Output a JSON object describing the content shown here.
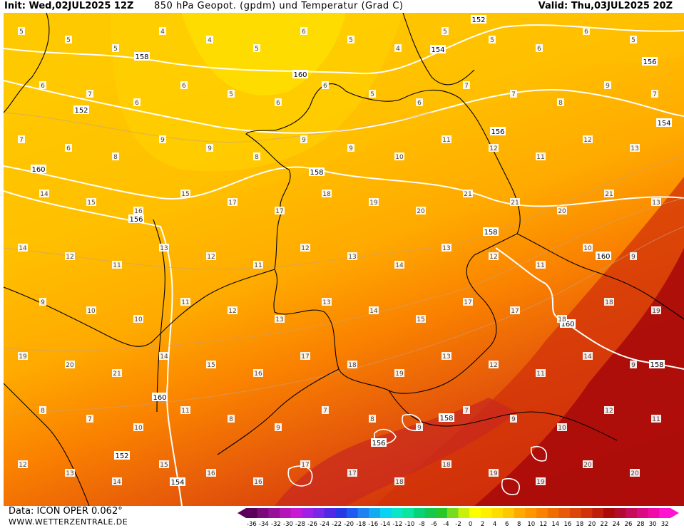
{
  "header": {
    "init": "Init: Wed,02JUL2025 12Z",
    "title": "850 hPa Geopot. (gpdm) und Temperatur (Grad C)",
    "valid": "Valid: Thu,03JUL2025 20Z"
  },
  "footer": {
    "data_source": "Data: ICON OPER 0.062°",
    "website": "WWW.WETTERZENTRALE.DE"
  },
  "colorbar": {
    "colors": [
      "#5a005a",
      "#7a0a7a",
      "#96109a",
      "#b414b8",
      "#c818d2",
      "#a020e6",
      "#7828e6",
      "#5028e6",
      "#2838e6",
      "#1e5af0",
      "#1e82f0",
      "#14aaf0",
      "#0ad2f0",
      "#0ae6c8",
      "#0ae6a0",
      "#0ad278",
      "#14c850",
      "#28c828",
      "#78dc1e",
      "#c8f00a",
      "#ffff00",
      "#fff000",
      "#ffdc00",
      "#ffc800",
      "#ffaa00",
      "#ff9600",
      "#fa8200",
      "#f06e00",
      "#e65a0a",
      "#dc460a",
      "#d2320a",
      "#be1e0a",
      "#aa0a0a",
      "#b40a32",
      "#c80a5a",
      "#dc0a82",
      "#f00aaa",
      "#ff14d2"
    ],
    "tick_labels": [
      "-36",
      "-34",
      "-32",
      "-30",
      "-28",
      "-26",
      "-24",
      "-22",
      "-20",
      "-18",
      "-16",
      "-14",
      "-12",
      "-10",
      "-8",
      "-6",
      "-4",
      "-2",
      "0",
      "2",
      "4",
      "6",
      "8",
      "10",
      "12",
      "14",
      "16",
      "18",
      "20",
      "22",
      "24",
      "26",
      "28",
      "30",
      "32"
    ]
  },
  "map": {
    "geopotential_labels": [
      "152",
      "154",
      "156",
      "158",
      "160",
      "152",
      "154",
      "156",
      "158",
      "160",
      "156",
      "158",
      "160",
      "158",
      "160",
      "152",
      "154",
      "156",
      "158",
      "160"
    ],
    "temperature_labels": [
      "5",
      "5",
      "5",
      "4",
      "4",
      "5",
      "6",
      "5",
      "4",
      "5",
      "5",
      "6",
      "6",
      "5",
      "6",
      "7",
      "6",
      "6",
      "5",
      "6",
      "6",
      "5",
      "6",
      "7",
      "7",
      "8",
      "9",
      "7",
      "7",
      "6",
      "8",
      "9",
      "9",
      "8",
      "9",
      "9",
      "10",
      "11",
      "12",
      "11",
      "12",
      "13",
      "14",
      "15",
      "16",
      "15",
      "17",
      "17",
      "18",
      "19",
      "20",
      "21",
      "21",
      "20",
      "21",
      "13",
      "14",
      "12",
      "11",
      "13",
      "12",
      "11",
      "12",
      "13",
      "14",
      "13",
      "12",
      "11",
      "10",
      "9",
      "9",
      "10",
      "10",
      "11",
      "12",
      "13",
      "13",
      "14",
      "15",
      "17",
      "17",
      "18",
      "18",
      "19",
      "19",
      "20",
      "21",
      "14",
      "15",
      "16",
      "17",
      "18",
      "19",
      "13",
      "12",
      "11",
      "14",
      "9",
      "8",
      "7",
      "10",
      "11",
      "8",
      "9",
      "7",
      "8",
      "9",
      "7",
      "9",
      "10",
      "12",
      "11",
      "12",
      "13",
      "14",
      "15",
      "16",
      "16",
      "17",
      "17",
      "18",
      "18",
      "19",
      "19",
      "20",
      "20"
    ],
    "colors": {
      "yellow": "#ffd400",
      "light_orange": "#ffc800",
      "orange": "#ffaa00",
      "deep_orange": "#fa8200",
      "red_orange": "#e65a0a",
      "red": "#d2320a",
      "dark_red": "#aa0a0a"
    }
  }
}
